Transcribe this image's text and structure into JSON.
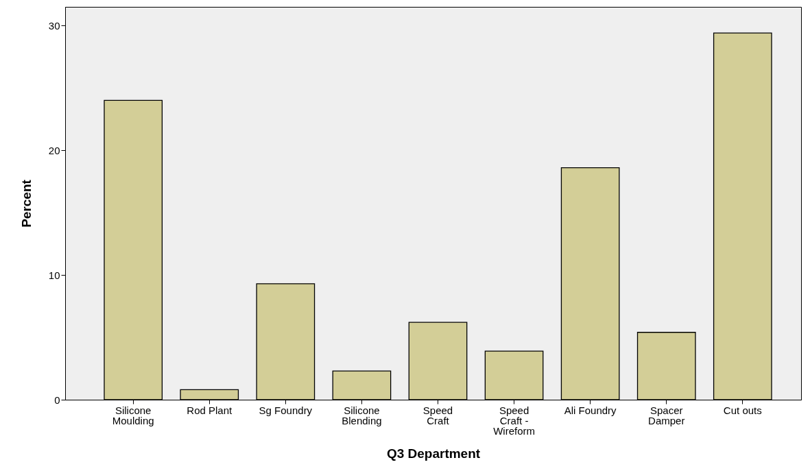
{
  "chart_data": {
    "type": "bar",
    "xlabel": "Q3 Department",
    "ylabel": "Percent",
    "categories": [
      "Silicone Moulding",
      "Rod Plant",
      "Sg Foundry",
      "Silicone Blending",
      "Speed Craft",
      "Speed Craft - Wireform",
      "Ali Foundry",
      "Spacer Damper",
      "Cut outs"
    ],
    "values": [
      24.0,
      0.8,
      9.3,
      2.3,
      6.2,
      3.9,
      18.6,
      5.4,
      29.4
    ],
    "color": "#d3ce97",
    "ylim": [
      0,
      31.5
    ],
    "yticks": [
      0,
      10,
      20,
      30
    ],
    "grid": false
  }
}
